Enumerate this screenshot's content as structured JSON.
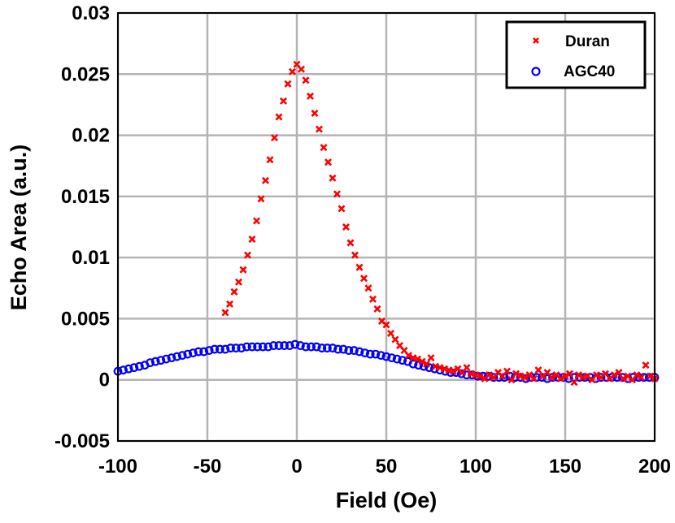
{
  "chart_data": {
    "type": "scatter",
    "title": "",
    "xlabel": "Field (Oe)",
    "ylabel": "Echo Area (a.u.)",
    "xlim": [
      -100,
      200
    ],
    "ylim": [
      -0.005,
      0.03
    ],
    "xticks": [
      "-100",
      "-50",
      "0",
      "50",
      "100",
      "150",
      "200"
    ],
    "xtick_values": [
      -100,
      -50,
      0,
      50,
      100,
      150,
      200
    ],
    "yticks": [
      "-0.005",
      "0",
      "0.005",
      "0.01",
      "0.015",
      "0.02",
      "0.025",
      "0.03"
    ],
    "ytick_values": [
      -0.005,
      0,
      0.005,
      0.01,
      0.015,
      0.02,
      0.025,
      0.03
    ],
    "grid": true,
    "legend_position": "top-right",
    "series": [
      {
        "name": "Duran",
        "marker": "x",
        "color": "#ff0000",
        "x": [
          -40,
          -37.5,
          -35,
          -32.5,
          -30,
          -27.5,
          -25,
          -22.5,
          -20,
          -17.5,
          -15,
          -12.5,
          -10,
          -7.5,
          -5,
          -2.5,
          0,
          2.5,
          5,
          7.5,
          10,
          12.5,
          15,
          17.5,
          20,
          22.5,
          25,
          27.5,
          30,
          32.5,
          35,
          37.5,
          40,
          42.5,
          45,
          47.5,
          50,
          52.5,
          55,
          57.5,
          60,
          62.5,
          65,
          67.5,
          70,
          72.5,
          75,
          77.5,
          80,
          82.5,
          85,
          87.5,
          90,
          92.5,
          95,
          97.5,
          100,
          102.5,
          105,
          107.5,
          110,
          112.5,
          115,
          117.5,
          120,
          122.5,
          125,
          127.5,
          130,
          132.5,
          135,
          137.5,
          140,
          142.5,
          145,
          147.5,
          150,
          152.5,
          155,
          157.5,
          160,
          162.5,
          165,
          167.5,
          170,
          172.5,
          175,
          177.5,
          180,
          182.5,
          185,
          187.5,
          190,
          192.5,
          195,
          197.5,
          200
        ],
        "y": [
          0.0055,
          0.0062,
          0.0072,
          0.008,
          0.009,
          0.0102,
          0.0115,
          0.013,
          0.0148,
          0.0163,
          0.018,
          0.0198,
          0.0215,
          0.0228,
          0.0242,
          0.0252,
          0.0258,
          0.0254,
          0.0245,
          0.0232,
          0.0218,
          0.0205,
          0.019,
          0.0178,
          0.0165,
          0.0152,
          0.014,
          0.0125,
          0.0112,
          0.0102,
          0.0092,
          0.0083,
          0.0075,
          0.0066,
          0.0058,
          0.0048,
          0.0045,
          0.0038,
          0.0033,
          0.0028,
          0.0024,
          0.002,
          0.0018,
          0.0017,
          0.0015,
          0.0013,
          0.0018,
          0.0011,
          0.001,
          0.0009,
          0.0008,
          0.0007,
          0.0009,
          0.0006,
          0.001,
          0.0005,
          0.0004,
          0.0003,
          0.0001,
          0.0004,
          0.0002,
          0.0006,
          0.0003,
          0.0007,
          0.0,
          0.0005,
          0.0003,
          0.0002,
          0.0004,
          0.0001,
          0.0008,
          0.0003,
          0.0006,
          0.0002,
          0.0004,
          0.0001,
          0.0003,
          0.0005,
          -0.0002,
          0.0004,
          0.0002,
          0.0003,
          0.0,
          0.0004,
          0.0002,
          0.0005,
          0.0001,
          0.0004,
          0.0006,
          0.0001,
          0.0003,
          0.0,
          0.0004,
          0.0002,
          0.0012,
          0.0003,
          0.0001
        ]
      },
      {
        "name": "AGC40",
        "marker": "o",
        "color": "#0000ff",
        "x": [
          -100,
          -97,
          -94,
          -91,
          -88,
          -85,
          -82,
          -79,
          -76,
          -73,
          -70,
          -67,
          -64,
          -61,
          -58,
          -55,
          -52,
          -49,
          -46,
          -43,
          -40,
          -37,
          -34,
          -31,
          -28,
          -25,
          -22,
          -19,
          -16,
          -13,
          -10,
          -7,
          -4,
          -1,
          2,
          5,
          8,
          11,
          14,
          17,
          20,
          23,
          26,
          29,
          32,
          35,
          38,
          41,
          44,
          47,
          50,
          53,
          56,
          59,
          62,
          65,
          68,
          71,
          74,
          77,
          80,
          83,
          86,
          89,
          92,
          95,
          98,
          101,
          104,
          107,
          110,
          113,
          116,
          119,
          122,
          125,
          128,
          131,
          134,
          137,
          140,
          143,
          146,
          149,
          152,
          155,
          158,
          161,
          164,
          167,
          170,
          173,
          176,
          179,
          182,
          185,
          188,
          191,
          194,
          197,
          200
        ],
        "y": [
          0.0007,
          0.0008,
          0.0009,
          0.001,
          0.0011,
          0.0012,
          0.0014,
          0.0015,
          0.0016,
          0.0017,
          0.0018,
          0.0019,
          0.002,
          0.0021,
          0.0022,
          0.0023,
          0.0023,
          0.0024,
          0.0025,
          0.0025,
          0.0025,
          0.0026,
          0.0026,
          0.0026,
          0.0027,
          0.0027,
          0.0027,
          0.0027,
          0.0027,
          0.0028,
          0.0028,
          0.0028,
          0.0028,
          0.0029,
          0.0028,
          0.0027,
          0.0027,
          0.0027,
          0.0026,
          0.0026,
          0.0026,
          0.0025,
          0.0025,
          0.0024,
          0.0024,
          0.0023,
          0.0022,
          0.0021,
          0.0021,
          0.002,
          0.0019,
          0.0018,
          0.0017,
          0.0016,
          0.0015,
          0.0013,
          0.0012,
          0.0011,
          0.001,
          0.0009,
          0.0008,
          0.0007,
          0.0006,
          0.0006,
          0.0005,
          0.0004,
          0.0004,
          0.0003,
          0.0003,
          0.0003,
          0.0002,
          0.0002,
          0.0002,
          0.0003,
          0.0002,
          0.0002,
          0.0001,
          0.0002,
          0.0002,
          0.0002,
          0.0001,
          0.0002,
          0.0002,
          0.0002,
          0.0001,
          0.0002,
          0.0002,
          0.0002,
          0.0002,
          0.0001,
          0.0002,
          0.0002,
          0.0002,
          0.0002,
          0.0002,
          0.0001,
          0.0002,
          0.0002,
          0.0002,
          0.0002,
          0.0002
        ]
      }
    ]
  }
}
